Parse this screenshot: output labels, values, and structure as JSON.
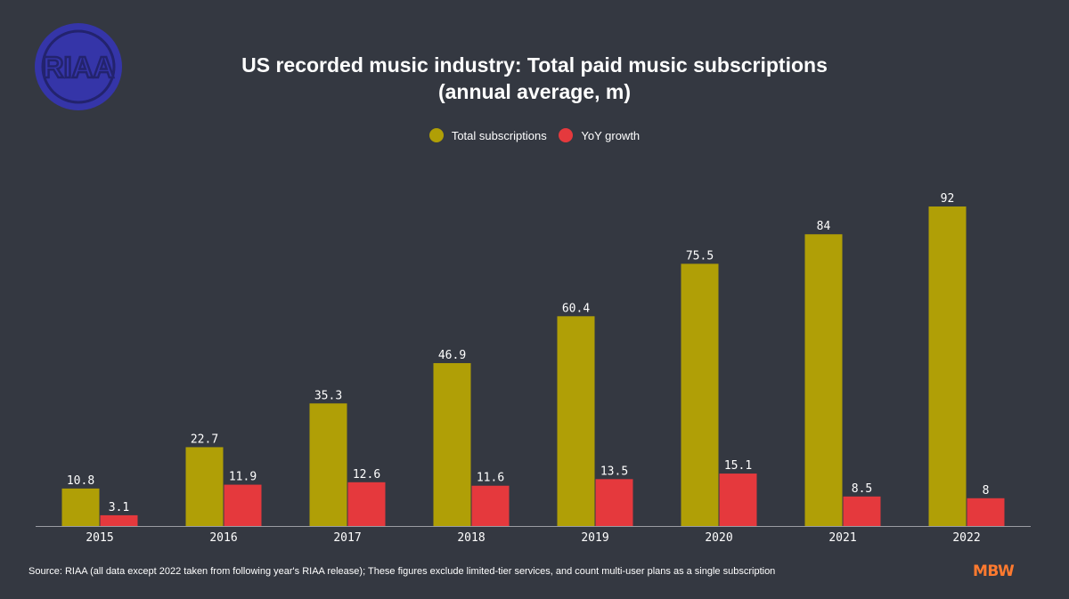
{
  "header": {
    "title_line1": "US recorded music industry: Total paid music subscriptions",
    "title_line2": "(annual average, m)",
    "logo_text": "RIAA",
    "brand_text": "MBW"
  },
  "footer": {
    "source": "Source: RIAA (all data except 2022 taken from following year's RIAA release); These figures exclude limited-tier services, and count multi-user plans as a single subscription"
  },
  "colors": {
    "background": "#343841",
    "total": "#b09f06",
    "growth": "#e5393d",
    "logo": "#3535a8",
    "brand": "#ff7a2f"
  },
  "chart_data": {
    "type": "bar",
    "categories": [
      "2015",
      "2016",
      "2017",
      "2018",
      "2019",
      "2020",
      "2021",
      "2022"
    ],
    "series": [
      {
        "name": "Total subscriptions",
        "values": [
          10.8,
          22.7,
          35.3,
          46.9,
          60.4,
          75.5,
          84,
          92
        ]
      },
      {
        "name": "YoY growth",
        "values": [
          3.1,
          11.9,
          12.6,
          11.6,
          13.5,
          15.1,
          8.5,
          8
        ]
      }
    ],
    "ylim": [
      0,
      92
    ],
    "grid": false,
    "legend": "top-center"
  }
}
